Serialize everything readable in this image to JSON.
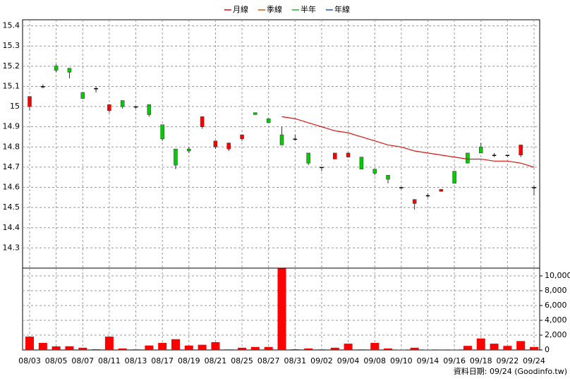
{
  "chart_data": {
    "type": "candlestick",
    "categories": [
      "08/03",
      null,
      "08/05",
      null,
      "08/07",
      null,
      "08/11",
      null,
      "08/13",
      null,
      "08/17",
      null,
      "08/19",
      null,
      "08/21",
      null,
      "08/25",
      null,
      "08/27",
      null,
      "08/31",
      null,
      "09/02",
      null,
      "09/04",
      null,
      "09/08",
      null,
      "09/10",
      null,
      "09/14",
      null,
      "09/16",
      null,
      "09/18",
      null,
      "09/22",
      null,
      "09/24"
    ],
    "open": [
      15.0,
      15.1,
      15.2,
      15.19,
      15.07,
      15.09,
      14.98,
      15.03,
      15.0,
      15.01,
      14.91,
      14.79,
      14.79,
      14.9,
      14.8,
      14.79,
      14.84,
      14.97,
      14.94,
      14.86,
      14.84,
      14.77,
      14.7,
      14.74,
      14.75,
      14.75,
      14.69,
      14.66,
      14.6,
      14.52,
      14.56,
      14.58,
      14.68,
      14.77,
      14.8,
      14.76,
      14.76,
      14.76,
      14.6
    ],
    "high": [
      15.05,
      15.11,
      15.21,
      15.19,
      15.07,
      15.1,
      15.01,
      15.03,
      15.0,
      15.01,
      14.91,
      14.79,
      14.8,
      14.95,
      14.83,
      14.82,
      14.86,
      14.97,
      14.94,
      14.9,
      14.86,
      14.77,
      14.7,
      14.77,
      14.77,
      14.75,
      14.69,
      14.66,
      14.6,
      14.54,
      14.57,
      14.59,
      14.68,
      14.77,
      14.82,
      14.77,
      14.76,
      14.81,
      14.61
    ],
    "low": [
      14.98,
      15.09,
      15.17,
      15.14,
      15.04,
      15.07,
      14.97,
      14.99,
      14.99,
      14.95,
      14.83,
      14.69,
      14.77,
      14.89,
      14.79,
      14.78,
      14.83,
      14.96,
      14.92,
      14.81,
      14.83,
      14.71,
      14.68,
      14.74,
      14.75,
      14.69,
      14.66,
      14.62,
      14.59,
      14.49,
      14.55,
      14.58,
      14.62,
      14.72,
      14.77,
      14.75,
      14.75,
      14.75,
      14.56
    ],
    "close": [
      15.05,
      15.1,
      15.18,
      15.17,
      15.04,
      15.09,
      15.01,
      15.0,
      15.0,
      14.96,
      14.84,
      14.71,
      14.78,
      14.95,
      14.83,
      14.82,
      14.86,
      14.96,
      14.92,
      14.81,
      14.84,
      14.72,
      14.7,
      14.77,
      14.77,
      14.69,
      14.67,
      14.64,
      14.6,
      14.54,
      14.56,
      14.59,
      14.62,
      14.72,
      14.77,
      14.76,
      14.76,
      14.81,
      14.6
    ],
    "up_color": "#ff0000",
    "down_color": "#00cc00",
    "ylim": [
      14.2,
      15.43
    ],
    "yticks": [
      14.3,
      14.4,
      14.5,
      14.6,
      14.7,
      14.8,
      14.9,
      15,
      15.1,
      15.2,
      15.3,
      15.4
    ],
    "grid": true,
    "series": [
      {
        "name": "月線",
        "color": "#dd1111",
        "values": [
          null,
          null,
          null,
          null,
          null,
          null,
          null,
          null,
          null,
          null,
          null,
          null,
          null,
          null,
          null,
          null,
          null,
          null,
          null,
          14.95,
          14.94,
          14.92,
          14.9,
          14.88,
          14.87,
          14.85,
          14.83,
          14.81,
          14.8,
          14.78,
          14.77,
          14.76,
          14.75,
          14.74,
          14.74,
          14.73,
          14.73,
          14.72,
          14.7
        ]
      },
      {
        "name": "季線",
        "color": "#dd5500",
        "values": [
          null,
          null,
          null,
          null,
          null,
          null,
          null,
          null,
          null,
          null,
          null,
          null,
          null,
          null,
          null,
          null,
          null,
          null,
          null,
          null,
          null,
          null,
          null,
          null,
          null,
          null,
          null,
          null,
          null,
          null,
          null,
          null,
          null,
          null,
          null,
          null,
          null,
          null,
          null
        ]
      },
      {
        "name": "半年",
        "color": "#22bb22",
        "values": [
          null,
          null,
          null,
          null,
          null,
          null,
          null,
          null,
          null,
          null,
          null,
          null,
          null,
          null,
          null,
          null,
          null,
          null,
          null,
          null,
          null,
          null,
          null,
          null,
          null,
          null,
          null,
          null,
          null,
          null,
          null,
          null,
          null,
          null,
          null,
          null,
          null,
          null,
          null
        ]
      },
      {
        "name": "年線",
        "color": "#2255cc",
        "values": [
          null,
          null,
          null,
          null,
          null,
          null,
          null,
          null,
          null,
          null,
          null,
          null,
          null,
          null,
          null,
          null,
          null,
          null,
          null,
          null,
          null,
          null,
          null,
          null,
          null,
          null,
          null,
          null,
          null,
          null,
          null,
          null,
          null,
          null,
          null,
          null,
          null,
          null,
          null
        ]
      }
    ],
    "volume": {
      "color": "#ff0000",
      "values": [
        1800,
        950,
        480,
        500,
        300,
        100,
        1800,
        200,
        80,
        600,
        950,
        1450,
        600,
        700,
        1050,
        80,
        300,
        400,
        400,
        11000,
        100,
        200,
        80,
        300,
        850,
        80,
        950,
        200,
        50,
        300,
        50,
        60,
        50,
        550,
        1550,
        850,
        550,
        1200,
        400
      ],
      "ylim": [
        0,
        11050
      ],
      "yticks": [
        0,
        {
          "value": 2000,
          "label": "2,000"
        },
        {
          "value": 4000,
          "label": "4,000"
        },
        {
          "value": 6000,
          "label": "6,000"
        },
        {
          "value": 8000,
          "label": "8,000"
        },
        {
          "value": 10000,
          "label": "10,000"
        }
      ]
    },
    "footer": "資料日期: 09/24  (Goodinfo.tw)"
  }
}
